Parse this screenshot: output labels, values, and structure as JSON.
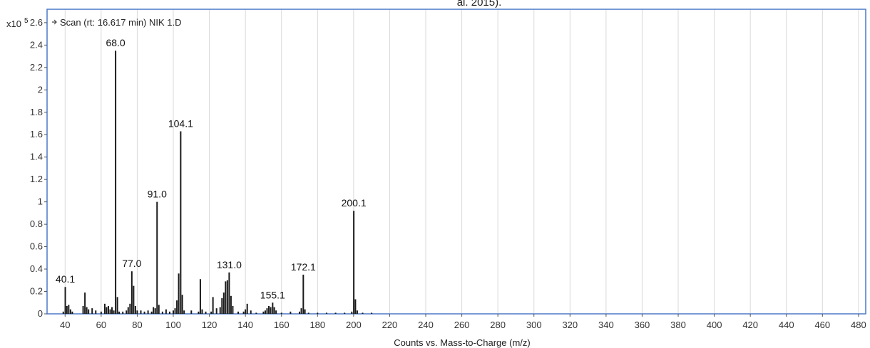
{
  "caption_fragment": "al. 2015).",
  "y_scale_prefix": "x10",
  "y_scale_exponent": "5",
  "scan_label": "Scan (rt: 16.617 min) NIK 1.D",
  "colors": {
    "frame": "#4a78c8",
    "grid": "#d9d9d9",
    "bar": "#1a1a1a",
    "background": "#ffffff"
  },
  "chart_data": {
    "type": "bar",
    "title": "",
    "xlabel": "Counts vs. Mass-to-Charge (m/z)",
    "ylabel": "",
    "xlim": [
      30,
      484
    ],
    "ylim": [
      0,
      2.72
    ],
    "grid": true,
    "x_ticks": [
      40,
      60,
      80,
      100,
      120,
      140,
      160,
      180,
      200,
      220,
      240,
      260,
      280,
      300,
      320,
      340,
      360,
      380,
      400,
      420,
      440,
      460,
      480
    ],
    "y_ticks": [
      0,
      0.2,
      0.4,
      0.6,
      0.8,
      1,
      1.2,
      1.4,
      1.6,
      1.8,
      2,
      2.2,
      2.4,
      2.6
    ],
    "y_tick_labels": [
      "0",
      "0.2",
      "0.4",
      "0.6",
      "0.8",
      "1",
      "1.2",
      "1.4",
      "1.6",
      "1.8",
      "2",
      "2.2",
      "2.4",
      "2.6"
    ],
    "peak_labels": [
      {
        "mz": 40.1,
        "label": "40.1"
      },
      {
        "mz": 68.0,
        "label": "68.0"
      },
      {
        "mz": 77.0,
        "label": "77.0"
      },
      {
        "mz": 91.0,
        "label": "91.0"
      },
      {
        "mz": 104.1,
        "label": "104.1"
      },
      {
        "mz": 131.0,
        "label": "131.0"
      },
      {
        "mz": 155.1,
        "label": "155.1"
      },
      {
        "mz": 172.1,
        "label": "172.1"
      },
      {
        "mz": 200.1,
        "label": "200.1"
      }
    ],
    "x": [
      39,
      40.1,
      41,
      42,
      43,
      44,
      50,
      51,
      52,
      53,
      55,
      57,
      60,
      62,
      63,
      64,
      65,
      66,
      67,
      68.0,
      69,
      70,
      72,
      74,
      75,
      76,
      77.0,
      78,
      79,
      80,
      82,
      84,
      86,
      88,
      89,
      90,
      91.0,
      92,
      94,
      96,
      98,
      100,
      101,
      102,
      103,
      104.1,
      105,
      106,
      110,
      114,
      115,
      116,
      118,
      121,
      122,
      124,
      126,
      127,
      128,
      129,
      130,
      131.0,
      132,
      133,
      136,
      139,
      140,
      141,
      143,
      146,
      150,
      151,
      152,
      153,
      154,
      155.1,
      156,
      157,
      160,
      165,
      170,
      171,
      172.1,
      173,
      175,
      180,
      185,
      190,
      195,
      199,
      200.1,
      201,
      202,
      205,
      210
    ],
    "values": [
      0.02,
      0.24,
      0.07,
      0.08,
      0.04,
      0.02,
      0.07,
      0.19,
      0.06,
      0.04,
      0.05,
      0.03,
      0.02,
      0.09,
      0.06,
      0.07,
      0.04,
      0.06,
      0.03,
      2.35,
      0.15,
      0.02,
      0.02,
      0.03,
      0.06,
      0.09,
      0.38,
      0.25,
      0.07,
      0.03,
      0.03,
      0.02,
      0.03,
      0.02,
      0.06,
      0.05,
      1.0,
      0.08,
      0.02,
      0.04,
      0.02,
      0.03,
      0.05,
      0.12,
      0.36,
      1.63,
      0.17,
      0.03,
      0.03,
      0.02,
      0.31,
      0.04,
      0.02,
      0.02,
      0.15,
      0.05,
      0.06,
      0.14,
      0.19,
      0.29,
      0.3,
      0.37,
      0.16,
      0.07,
      0.02,
      0.02,
      0.04,
      0.09,
      0.03,
      0.01,
      0.02,
      0.03,
      0.05,
      0.07,
      0.06,
      0.1,
      0.06,
      0.03,
      0.01,
      0.02,
      0.02,
      0.05,
      0.35,
      0.04,
      0.01,
      0.01,
      0.01,
      0.01,
      0.01,
      0.02,
      0.92,
      0.13,
      0.03,
      0.01,
      0.01
    ]
  }
}
